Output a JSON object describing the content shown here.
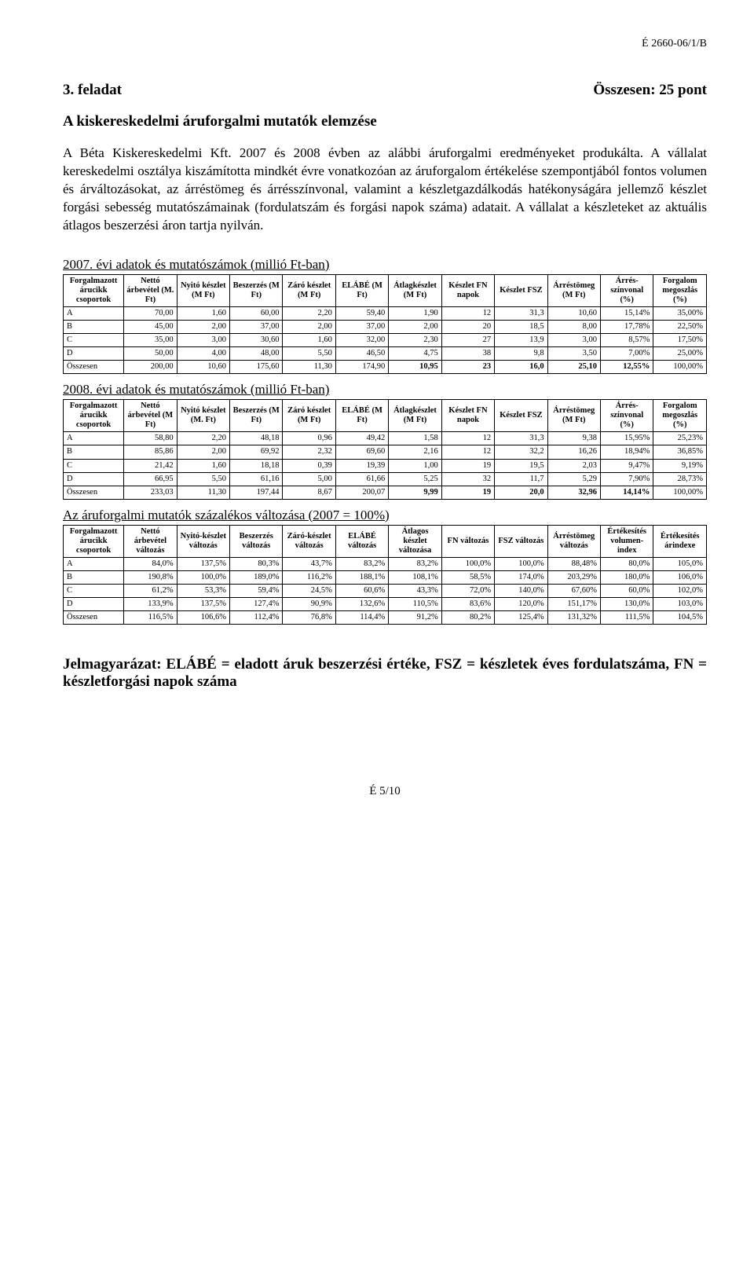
{
  "doc_id": "É 2660-06/1/B",
  "task_label": "3. feladat",
  "points_label": "Összesen: 25 pont",
  "subtitle": "A kiskereskedelmi áruforgalmi mutatók elemzése",
  "intro": "A Béta Kiskereskedelmi Kft. 2007 és 2008 évben az alábbi áruforgalmi eredményeket produkálta. A vállalat kereskedelmi osztálya kiszámította mindkét évre vonatkozóan az áruforgalom értékelése szempontjából fontos volumen és árváltozásokat, az árréstömeg és árrésszínvonal, valamint a készletgazdálkodás hatékonyságára jellemző készlet forgási sebesség mutatószámainak (fordulatszám és forgási napok száma) adatait. A vállalat a készleteket az aktuális átlagos beszerzési áron tartja nyilván.",
  "tables": [
    {
      "title": "2007. évi adatok és mutatószámok (millió Ft-ban)",
      "headers": [
        "Forgalmazott árucikk csoportok",
        "Nettó árbevétel (M. Ft)",
        "Nyitó készlet (M Ft)",
        "Beszerzés (M Ft)",
        "Záró készlet (M Ft)",
        "ELÁBÉ (M Ft)",
        "Átlagkészlet (M Ft)",
        "Készlet FN napok",
        "Készlet FSZ",
        "Árréstömeg (M Ft)",
        "Árrés-színvonal (%)",
        "Forgalom megoszlás (%)"
      ],
      "rows": [
        [
          "A",
          "70,00",
          "1,60",
          "60,00",
          "2,20",
          "59,40",
          "1,90",
          "12",
          "31,3",
          "10,60",
          "15,14%",
          "35,00%"
        ],
        [
          "B",
          "45,00",
          "2,00",
          "37,00",
          "2,00",
          "37,00",
          "2,00",
          "20",
          "18,5",
          "8,00",
          "17,78%",
          "22,50%"
        ],
        [
          "C",
          "35,00",
          "3,00",
          "30,60",
          "1,60",
          "32,00",
          "2,30",
          "27",
          "13,9",
          "3,00",
          "8,57%",
          "17,50%"
        ],
        [
          "D",
          "50,00",
          "4,00",
          "48,00",
          "5,50",
          "46,50",
          "4,75",
          "38",
          "9,8",
          "3,50",
          "7,00%",
          "25,00%"
        ],
        [
          "Összesen",
          "200,00",
          "10,60",
          "175,60",
          "11,30",
          "174,90",
          "10,95",
          "23",
          "16,0",
          "25,10",
          "12,55%",
          "100,00%"
        ]
      ],
      "bold_cols_last_row": [
        6,
        7,
        8,
        9,
        10
      ],
      "bold_row_idx": 4
    },
    {
      "title": "2008. évi adatok és mutatószámok (millió Ft-ban)",
      "headers": [
        "Forgalmazott árucikk csoportok",
        "Nettó árbevétel (M Ft)",
        "Nyitó készlet (M. Ft)",
        "Beszerzés (M Ft)",
        "Záró készlet (M Ft)",
        "ELÁBÉ (M Ft)",
        "Átlagkészlet (M Ft)",
        "Készlet FN napok",
        "Készlet FSZ",
        "Árréstömeg (M Ft)",
        "Árrés-színvonal (%)",
        "Forgalom megoszlás (%)"
      ],
      "rows": [
        [
          "A",
          "58,80",
          "2,20",
          "48,18",
          "0,96",
          "49,42",
          "1,58",
          "12",
          "31,3",
          "9,38",
          "15,95%",
          "25,23%"
        ],
        [
          "B",
          "85,86",
          "2,00",
          "69,92",
          "2,32",
          "69,60",
          "2,16",
          "12",
          "32,2",
          "16,26",
          "18,94%",
          "36,85%"
        ],
        [
          "C",
          "21,42",
          "1,60",
          "18,18",
          "0,39",
          "19,39",
          "1,00",
          "19",
          "19,5",
          "2,03",
          "9,47%",
          "9,19%"
        ],
        [
          "D",
          "66,95",
          "5,50",
          "61,16",
          "5,00",
          "61,66",
          "5,25",
          "32",
          "11,7",
          "5,29",
          "7,90%",
          "28,73%"
        ],
        [
          "Összesen",
          "233,03",
          "11,30",
          "197,44",
          "8,67",
          "200,07",
          "9,99",
          "19",
          "20,0",
          "32,96",
          "14,14%",
          "100,00%"
        ]
      ],
      "bold_cols_last_row": [
        6,
        7,
        8,
        9,
        10
      ],
      "bold_row_idx": 4
    },
    {
      "title": "Az áruforgalmi mutatók százalékos változása (2007 = 100%)",
      "headers": [
        "Forgalmazott árucikk csoportok",
        "Nettó árbevétel változás",
        "Nyitó-készlet változás",
        "Beszerzés változás",
        "Záró-készlet változás",
        "ELÁBÉ változás",
        "Átlagos készlet változása",
        "FN változás",
        "FSZ változás",
        "Árréstömeg változás",
        "Értékesítés volumen-index",
        "Értékesítés árindexe"
      ],
      "rows": [
        [
          "A",
          "84,0%",
          "137,5%",
          "80,3%",
          "43,7%",
          "83,2%",
          "83,2%",
          "100,0%",
          "100,0%",
          "88,48%",
          "80,0%",
          "105,0%"
        ],
        [
          "B",
          "190,8%",
          "100,0%",
          "189,0%",
          "116,2%",
          "188,1%",
          "108,1%",
          "58,5%",
          "174,0%",
          "203,29%",
          "180,0%",
          "106,0%"
        ],
        [
          "C",
          "61,2%",
          "53,3%",
          "59,4%",
          "24,5%",
          "60,6%",
          "43,3%",
          "72,0%",
          "140,0%",
          "67,60%",
          "60,0%",
          "102,0%"
        ],
        [
          "D",
          "133,9%",
          "137,5%",
          "127,4%",
          "90,9%",
          "132,6%",
          "110,5%",
          "83,6%",
          "120,0%",
          "151,17%",
          "130,0%",
          "103,0%"
        ],
        [
          "Összesen",
          "116,5%",
          "106,6%",
          "112,4%",
          "76,8%",
          "114,4%",
          "91,2%",
          "80,2%",
          "125,4%",
          "131,32%",
          "111,5%",
          "104,5%"
        ]
      ],
      "bold_cols_last_row": [],
      "bold_row_idx": -1
    }
  ],
  "legend": "Jelmagyarázat: ELÁBÉ = eladott áruk beszerzési értéke, FSZ = készletek éves fordulatszáma, FN = készletforgási napok száma",
  "footer": "É 5/10"
}
